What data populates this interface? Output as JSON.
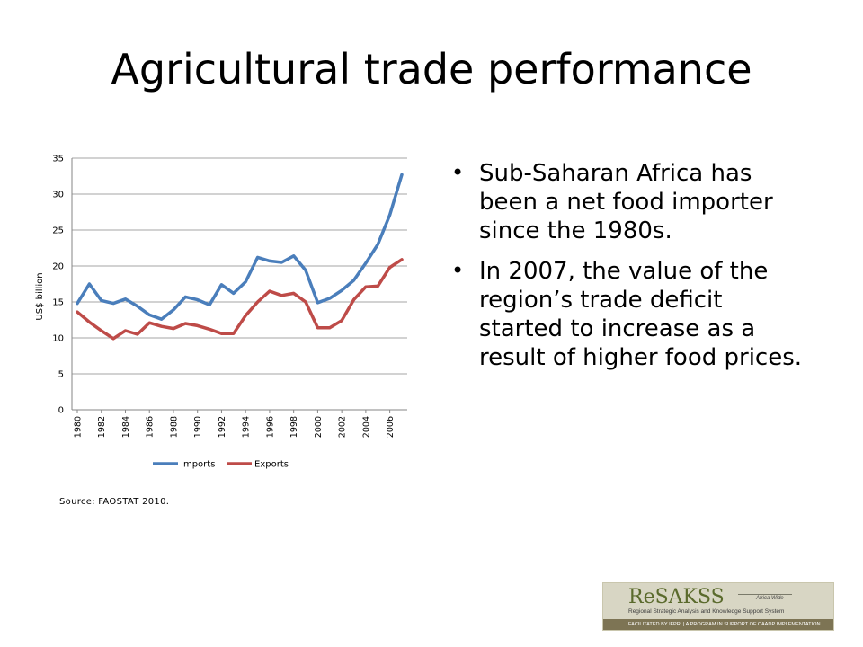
{
  "slide": {
    "title": "Agricultural trade performance",
    "source": "Source: FAOSTAT 2010.",
    "bullets": [
      "Sub-Saharan Africa has been a net food importer since the 1980s.",
      "In 2007, the value of the region’s trade deficit started to increase as a result of higher food prices."
    ]
  },
  "logo": {
    "brand": "ReSAKSS",
    "region": "Africa Wide",
    "tagline": "Regional Strategic Analysis and Knowledge Support System",
    "footer": "FACILITATED BY IFPRI  |  A PROGRAM IN SUPPORT OF CAADP IMPLEMENTATION"
  },
  "colors": {
    "imports": "#4a7ebb",
    "exports": "#be4b48"
  },
  "chart_data": {
    "type": "line",
    "title": "",
    "ylabel": "US$ billion",
    "xlabel": "",
    "ylim": [
      0,
      35
    ],
    "yticks": [
      0,
      5,
      10,
      15,
      20,
      25,
      30,
      35
    ],
    "x": [
      1980,
      1981,
      1982,
      1983,
      1984,
      1985,
      1986,
      1987,
      1988,
      1989,
      1990,
      1991,
      1992,
      1993,
      1994,
      1995,
      1996,
      1997,
      1998,
      1999,
      2000,
      2001,
      2002,
      2003,
      2004,
      2005,
      2006,
      2007
    ],
    "xticks": [
      "1980",
      "1982",
      "1984",
      "1986",
      "1988",
      "1990",
      "1992",
      "1994",
      "1996",
      "1998",
      "2000",
      "2002",
      "2004",
      "2006"
    ],
    "legend_position": "bottom",
    "grid": "horizontal",
    "series": [
      {
        "name": "Imports",
        "values": [
          14.8,
          17.5,
          15.2,
          14.8,
          15.4,
          14.4,
          13.2,
          12.6,
          13.9,
          15.7,
          15.3,
          14.6,
          17.4,
          16.2,
          17.8,
          21.2,
          20.7,
          20.5,
          21.4,
          19.4,
          14.9,
          15.5,
          16.6,
          18.0,
          20.4,
          23.0,
          27.1,
          32.7
        ]
      },
      {
        "name": "Exports",
        "values": [
          13.6,
          12.2,
          11.0,
          9.9,
          11.0,
          10.5,
          12.1,
          11.6,
          11.3,
          12.0,
          11.7,
          11.2,
          10.6,
          10.6,
          13.1,
          15.0,
          16.5,
          15.9,
          16.2,
          15.0,
          11.4,
          11.4,
          12.4,
          15.3,
          17.1,
          17.2,
          19.8,
          20.9
        ]
      }
    ]
  }
}
